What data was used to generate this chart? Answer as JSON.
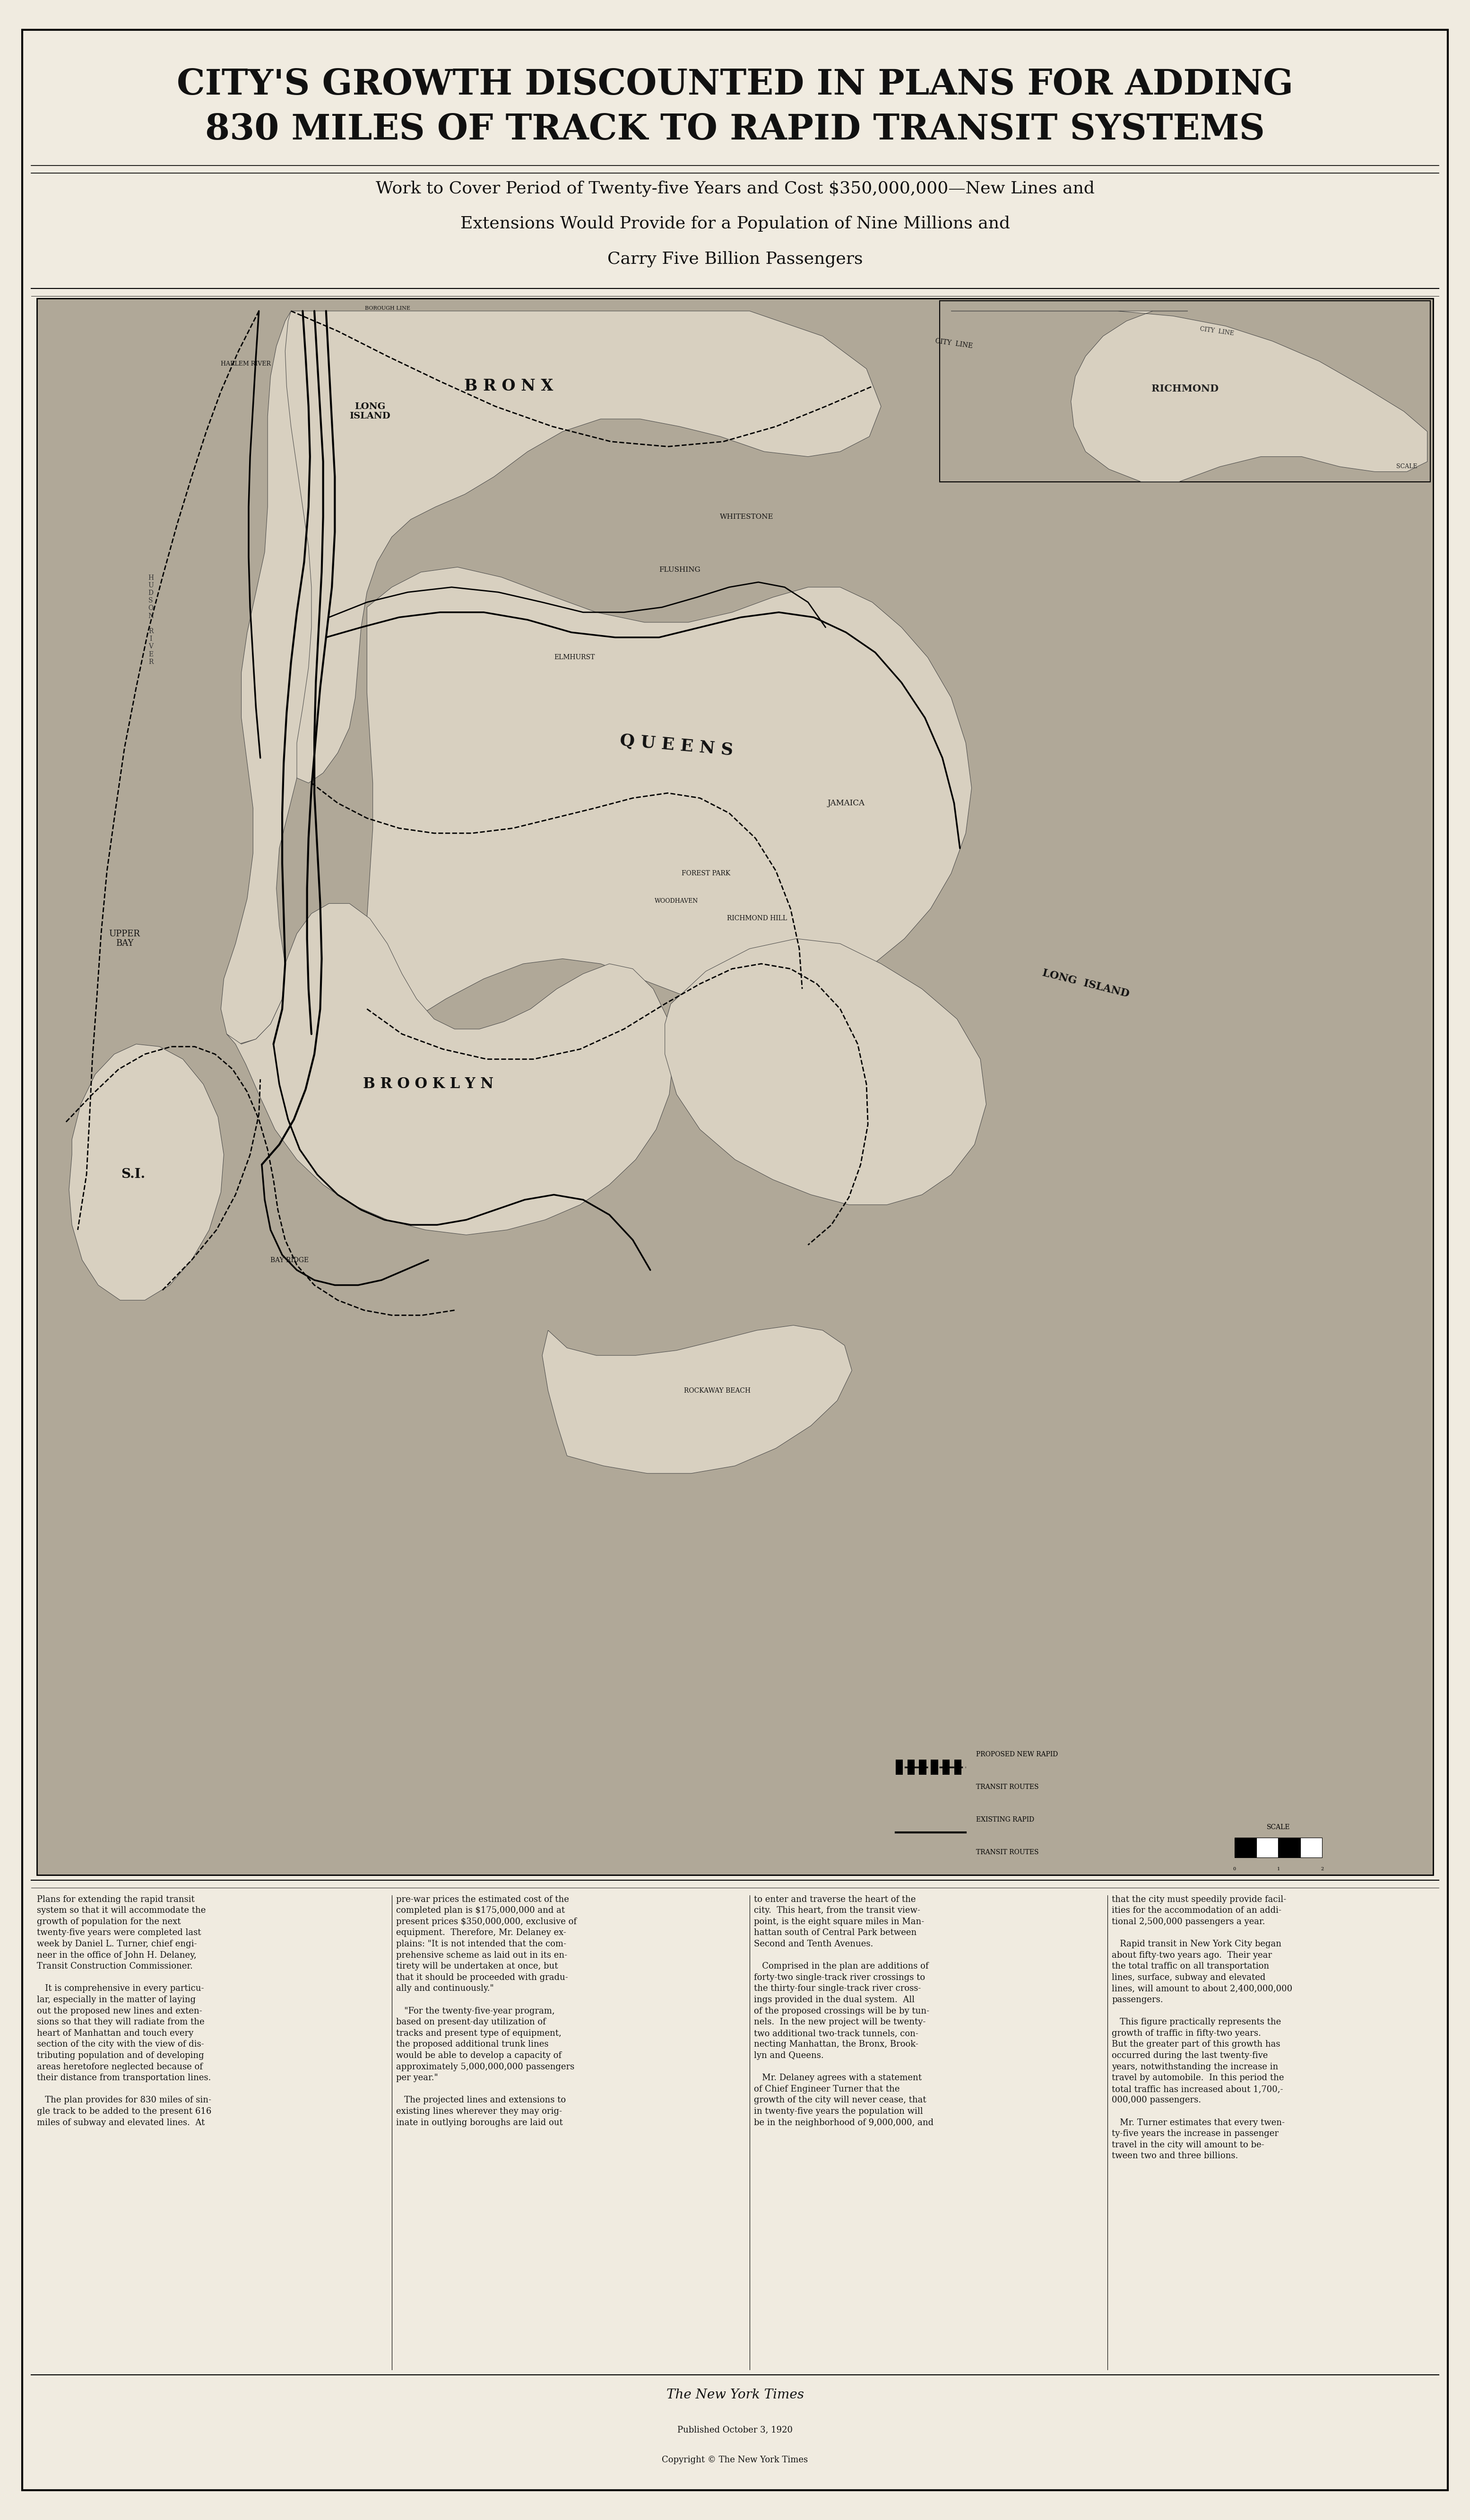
{
  "title_line1": "CITY'S GROWTH DISCOUNTED IN PLANS FOR ADDING",
  "title_line2": "830 MILES OF TRACK TO RAPID TRANSIT SYSTEMS",
  "subtitle_line1": "Work to Cover Period of Twenty-five Years and Cost $350,000,000—New Lines and",
  "subtitle_line2": "Extensions Would Provide for a Population of Nine Millions and",
  "subtitle_line3": "Carry Five Billion Passengers",
  "bg_color": "#f0ebe0",
  "text_color": "#111111",
  "map_bg": "#c8c0b0",
  "water_color": "#b0a898",
  "land_color": "#d8d0c0",
  "nyt_logo": "The New York Times",
  "published": "Published October 3, 1920",
  "copyright": "Copyright © The New York Times",
  "body_text_col1": "Plans for extending the rapid transit\nsystem so that it will accommodate the\ngrowth of population for the next\ntwenty-five years were completed last\nweek by Daniel L. Turner, chief engi-\nneer in the office of John H. Delaney,\nTransit Construction Commissioner.\n\n   It is comprehensive in every particu-\nlar, especially in the matter of laying\nout the proposed new lines and exten-\nsions so that they will radiate from the\nheart of Manhattan and touch every\nsection of the city with the view of dis-\ntributing population and of developing\nareas heretofore neglected because of\ntheir distance from transportation lines.\n\n   The plan provides for 830 miles of sin-\ngle track to be added to the present 616\nmiles of subway and elevated lines.  At",
  "body_text_col2": "pre-war prices the estimated cost of the\ncompleted plan is $175,000,000 and at\npresent prices $350,000,000, exclusive of\nequipment.  Therefore, Mr. Delaney ex-\nplains: \"It is not intended that the com-\nprehensive scheme as laid out in its en-\ntirety will be undertaken at once, but\nthat it should be proceeded with gradu-\nally and continuously.\"\n\n   \"For the twenty-five-year program,\nbased on present-day utilization of\ntracks and present type of equipment,\nthe proposed additional trunk lines\nwould be able to develop a capacity of\napproximately 5,000,000,000 passengers\nper year.\"\n\n   The projected lines and extensions to\nexisting lines wherever they may orig-\ninate in outlying boroughs are laid out",
  "body_text_col3": "to enter and traverse the heart of the\ncity.  This heart, from the transit view-\npoint, is the eight square miles in Man-\nhattan south of Central Park between\nSecond and Tenth Avenues.\n\n   Comprised in the plan are additions of\nforty-two single-track river crossings to\nthe thirty-four single-track river cross-\nings provided in the dual system.  All\nof the proposed crossings will be by tun-\nnels.  In the new project will be twenty-\ntwo additional two-track tunnels, con-\nnecting Manhattan, the Bronx, Brook-\nlyn and Queens.\n\n   Mr. Delaney agrees with a statement\nof Chief Engineer Turner that the\ngrowth of the city will never cease, that\nin twenty-five years the population will\nbe in the neighborhood of 9,000,000, and",
  "body_text_col4": "that the city must speedily provide facil-\nities for the accommodation of an addi-\ntional 2,500,000 passengers a year.\n\n   Rapid transit in New York City began\nabout fifty-two years ago.  Their year\nthe total traffic on all transportation\nlines, surface, subway and elevated\nlines, will amount to about 2,400,000,000\npassengers.\n\n   This figure practically represents the\ngrowth of traffic in fifty-two years.\nBut the greater part of this growth has\noccurred during the last twenty-five\nyears, notwithstanding the increase in\ntravel by automobile.  In this period the\ntotal traffic has increased about 1,700,-\n000,000 passengers.\n\n   Mr. Turner estimates that every twen-\nty-five years the increase in passenger\ntravel in the city will amount to be-\ntween two and three billions.",
  "legend_proposed": "PROPOSED NEW RAPID\nTRANSIT ROUTES",
  "legend_existing": "EXISTING RAPID\nTRANSIT ROUTES",
  "scale_bar_text": "SCALE"
}
